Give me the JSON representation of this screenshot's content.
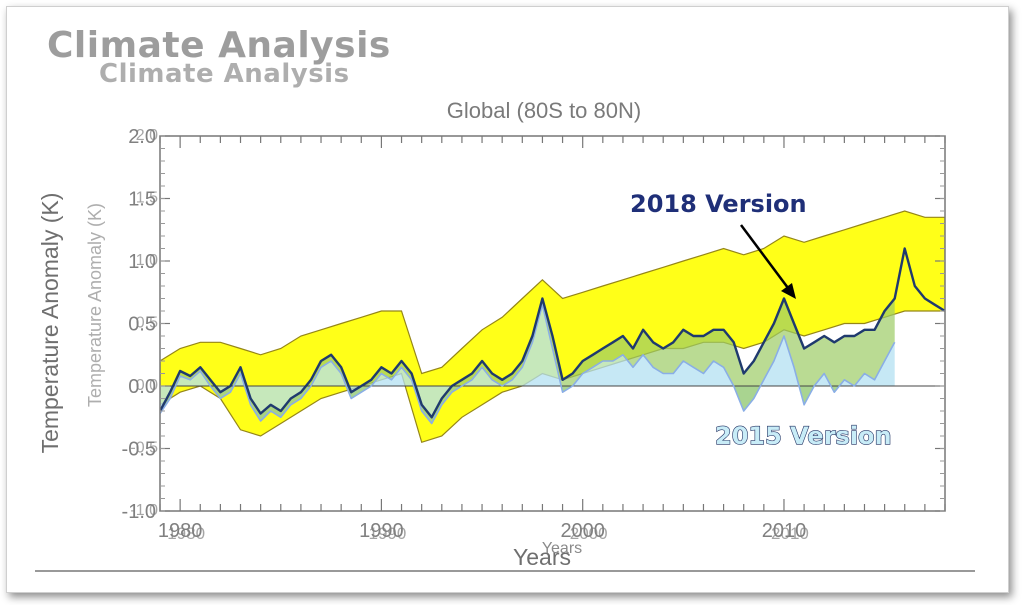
{
  "logo": {
    "line1": "Climate Analysis",
    "line2": "Climate Analysis"
  },
  "chart_data": {
    "type": "line",
    "title": "Global (80S to 80N)",
    "xlabel": "Years",
    "xlabel_ghost": "Years",
    "ylabel": "Temperature Anomaly (K)",
    "ylabel_ghost": "Temperature Anomaly (K)",
    "xlim": [
      1979,
      2018
    ],
    "ylim": [
      -1.0,
      2.0
    ],
    "xticks": [
      1980,
      1990,
      2000,
      2010
    ],
    "yticks": [
      -1.0,
      -0.5,
      0.0,
      0.5,
      1.0,
      1.5,
      2.0
    ],
    "ytick_labels": [
      "-1.0",
      "-0.5",
      "0.0",
      "0.5",
      "1.0",
      "1.5",
      "2.0"
    ],
    "xtick_labels": [
      "1980",
      "1990",
      "2000",
      "2010"
    ],
    "grid": false,
    "colors": {
      "version_2018": "#1f3a6e",
      "version_2015": "#8aaee6",
      "yellow_band": "#ffff00",
      "band_edge": "#8a7a00",
      "overlap_green": "#9ccc65",
      "blue_fill": "#b3e0f2"
    },
    "annotations": {
      "v2018": "2018 Version",
      "v2015": "2015 Version"
    },
    "series": [
      {
        "name": "2018 Version",
        "x": [
          1979.0,
          1979.5,
          1980.0,
          1980.5,
          1981.0,
          1981.5,
          1982.0,
          1982.5,
          1983.0,
          1983.5,
          1984.0,
          1984.5,
          1985.0,
          1985.5,
          1986.0,
          1986.5,
          1987.0,
          1987.5,
          1988.0,
          1988.5,
          1989.0,
          1989.5,
          1990.0,
          1990.5,
          1991.0,
          1991.5,
          1992.0,
          1992.5,
          1993.0,
          1993.5,
          1994.0,
          1994.5,
          1995.0,
          1995.5,
          1996.0,
          1996.5,
          1997.0,
          1997.5,
          1998.0,
          1998.5,
          1999.0,
          1999.5,
          2000.0,
          2000.5,
          2001.0,
          2001.5,
          2002.0,
          2002.5,
          2003.0,
          2003.5,
          2004.0,
          2004.5,
          2005.0,
          2005.5,
          2006.0,
          2006.5,
          2007.0,
          2007.5,
          2008.0,
          2008.5,
          2009.0,
          2009.5,
          2010.0,
          2010.5,
          2011.0,
          2011.5,
          2012.0,
          2012.5,
          2013.0,
          2013.5,
          2014.0,
          2014.5,
          2015.0,
          2015.5,
          2016.0,
          2016.5,
          2017.0,
          2017.5,
          2018.0
        ],
        "values": [
          -0.2,
          -0.05,
          0.12,
          0.08,
          0.15,
          0.05,
          -0.05,
          0.0,
          0.15,
          -0.1,
          -0.22,
          -0.15,
          -0.2,
          -0.1,
          -0.05,
          0.05,
          0.2,
          0.25,
          0.15,
          -0.05,
          0.0,
          0.05,
          0.15,
          0.1,
          0.2,
          0.1,
          -0.15,
          -0.25,
          -0.1,
          0.0,
          0.05,
          0.1,
          0.2,
          0.1,
          0.05,
          0.1,
          0.2,
          0.4,
          0.7,
          0.4,
          0.05,
          0.1,
          0.2,
          0.25,
          0.3,
          0.35,
          0.4,
          0.3,
          0.45,
          0.35,
          0.3,
          0.35,
          0.45,
          0.4,
          0.4,
          0.45,
          0.45,
          0.35,
          0.1,
          0.2,
          0.35,
          0.5,
          0.7,
          0.5,
          0.3,
          0.35,
          0.4,
          0.35,
          0.4,
          0.4,
          0.45,
          0.45,
          0.6,
          0.7,
          1.1,
          0.8,
          0.7,
          0.65,
          0.6
        ]
      },
      {
        "name": "2015 Version",
        "x": [
          1979.0,
          1979.5,
          1980.0,
          1980.5,
          1981.0,
          1981.5,
          1982.0,
          1982.5,
          1983.0,
          1983.5,
          1984.0,
          1984.5,
          1985.0,
          1985.5,
          1986.0,
          1986.5,
          1987.0,
          1987.5,
          1988.0,
          1988.5,
          1989.0,
          1989.5,
          1990.0,
          1990.5,
          1991.0,
          1991.5,
          1992.0,
          1992.5,
          1993.0,
          1993.5,
          1994.0,
          1994.5,
          1995.0,
          1995.5,
          1996.0,
          1996.5,
          1997.0,
          1997.5,
          1998.0,
          1998.5,
          1999.0,
          1999.5,
          2000.0,
          2000.5,
          2001.0,
          2001.5,
          2002.0,
          2002.5,
          2003.0,
          2003.5,
          2004.0,
          2004.5,
          2005.0,
          2005.5,
          2006.0,
          2006.5,
          2007.0,
          2007.5,
          2008.0,
          2008.5,
          2009.0,
          2009.5,
          2010.0,
          2010.5,
          2011.0,
          2011.5,
          2012.0,
          2012.5,
          2013.0,
          2013.5,
          2014.0,
          2014.5,
          2015.0,
          2015.5
        ],
        "values": [
          -0.22,
          -0.1,
          0.08,
          0.05,
          0.12,
          0.0,
          -0.1,
          -0.05,
          0.1,
          -0.15,
          -0.28,
          -0.2,
          -0.25,
          -0.15,
          -0.1,
          0.0,
          0.15,
          0.2,
          0.1,
          -0.1,
          -0.05,
          0.0,
          0.1,
          0.05,
          0.15,
          0.05,
          -0.2,
          -0.3,
          -0.15,
          -0.05,
          0.0,
          0.05,
          0.15,
          0.05,
          0.0,
          0.05,
          0.15,
          0.35,
          0.65,
          0.3,
          -0.05,
          0.0,
          0.1,
          0.15,
          0.2,
          0.2,
          0.25,
          0.15,
          0.25,
          0.15,
          0.1,
          0.1,
          0.2,
          0.15,
          0.1,
          0.2,
          0.15,
          0.0,
          -0.2,
          -0.1,
          0.05,
          0.2,
          0.4,
          0.15,
          -0.15,
          0.0,
          0.1,
          -0.05,
          0.05,
          0.0,
          0.1,
          0.05,
          0.2,
          0.35
        ]
      }
    ],
    "band": {
      "name": "range",
      "x": [
        1979.0,
        1980.0,
        1981.0,
        1982.0,
        1983.0,
        1984.0,
        1985.0,
        1986.0,
        1987.0,
        1988.0,
        1989.0,
        1990.0,
        1991.0,
        1992.0,
        1993.0,
        1994.0,
        1995.0,
        1996.0,
        1997.0,
        1998.0,
        1999.0,
        2000.0,
        2001.0,
        2002.0,
        2003.0,
        2004.0,
        2005.0,
        2006.0,
        2007.0,
        2008.0,
        2009.0,
        2010.0,
        2011.0,
        2012.0,
        2013.0,
        2014.0,
        2015.0,
        2016.0,
        2017.0,
        2018.0
      ],
      "upper": [
        0.2,
        0.3,
        0.35,
        0.35,
        0.3,
        0.25,
        0.3,
        0.4,
        0.45,
        0.5,
        0.55,
        0.6,
        0.6,
        0.1,
        0.15,
        0.3,
        0.45,
        0.55,
        0.7,
        0.85,
        0.7,
        0.75,
        0.8,
        0.85,
        0.9,
        0.95,
        1.0,
        1.05,
        1.1,
        1.05,
        1.1,
        1.2,
        1.15,
        1.2,
        1.25,
        1.3,
        1.35,
        1.4,
        1.35,
        1.35
      ],
      "lower": [
        -0.15,
        -0.05,
        0.0,
        -0.1,
        -0.35,
        -0.4,
        -0.3,
        -0.2,
        -0.1,
        -0.05,
        0.0,
        0.05,
        0.1,
        -0.45,
        -0.4,
        -0.25,
        -0.15,
        -0.05,
        0.0,
        0.1,
        0.05,
        0.1,
        0.15,
        0.2,
        0.25,
        0.3,
        0.3,
        0.35,
        0.35,
        0.3,
        0.35,
        0.45,
        0.4,
        0.45,
        0.5,
        0.5,
        0.55,
        0.6,
        0.6,
        0.6
      ]
    }
  }
}
